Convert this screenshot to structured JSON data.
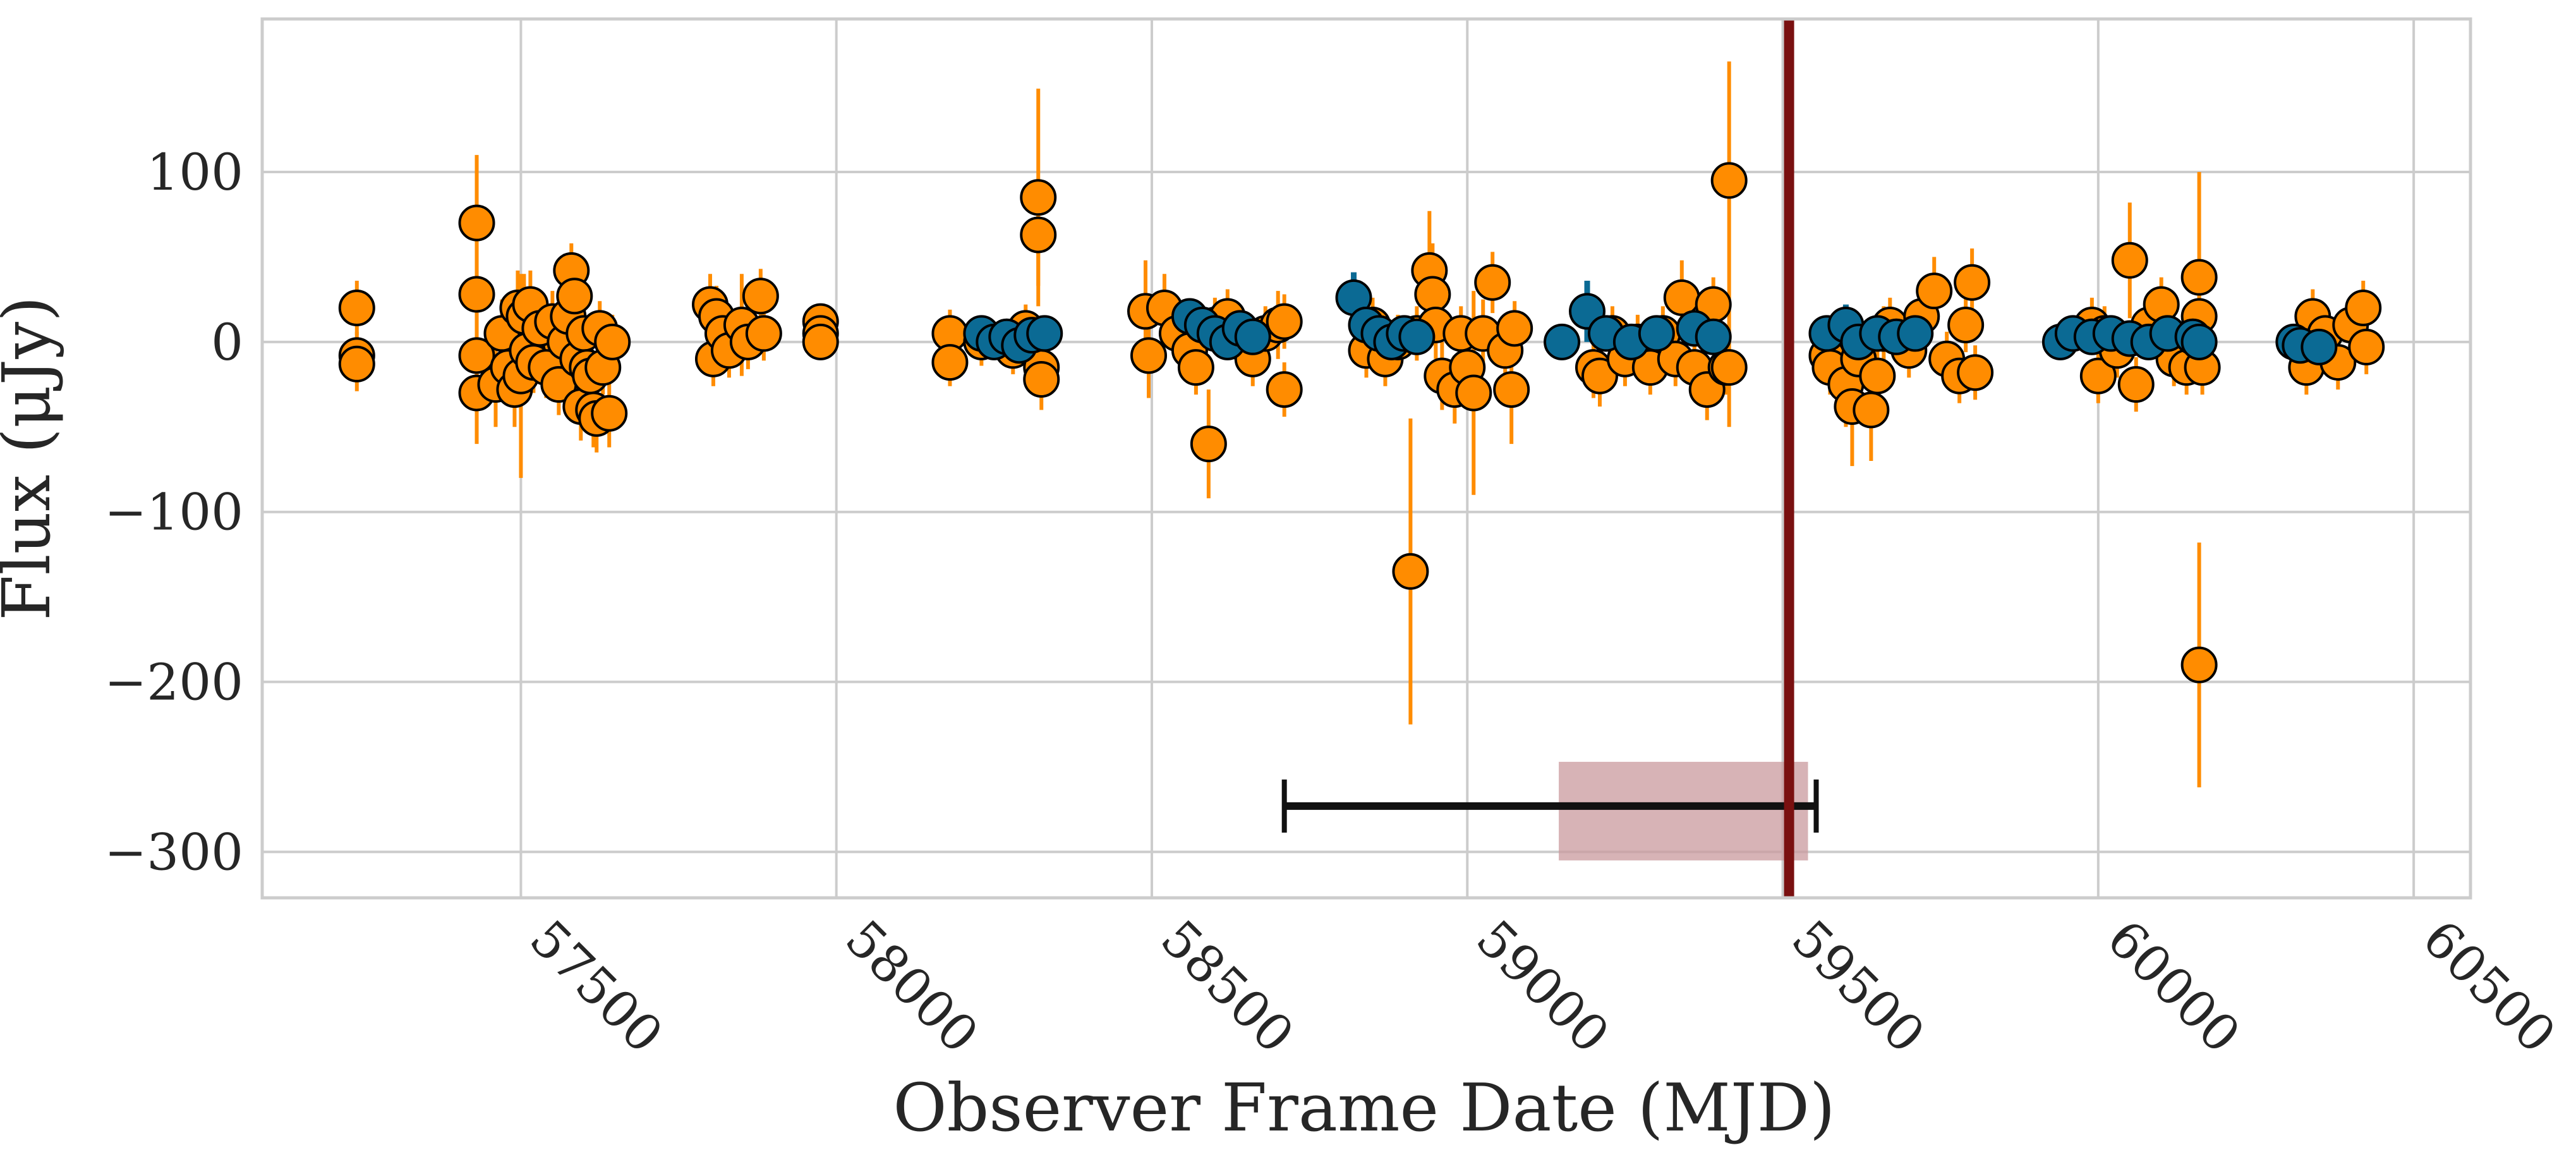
{
  "chart_data": {
    "type": "scatter",
    "title": "",
    "xlabel": "Observer Frame Date (MJD)",
    "ylabel": "Flux (μJy)",
    "xlim": [
      57090,
      60590
    ],
    "ylim": [
      -327,
      190
    ],
    "x_ticks": [
      57500,
      58000,
      58500,
      59000,
      59500,
      60000,
      60500
    ],
    "y_ticks": [
      100,
      0,
      -100,
      -200,
      -300
    ],
    "x_tick_labels": [
      "57500",
      "58000",
      "58500",
      "59000",
      "59500",
      "60000",
      "60500"
    ],
    "y_tick_labels": [
      "100",
      "0",
      "−100",
      "−200",
      "−300"
    ],
    "grid": true,
    "legend": "none",
    "colors": {
      "orange": "#ff8c00",
      "blue": "#0b6a94",
      "marker_edge": "#000000",
      "vertical_line": "#7a1010",
      "interval_bar": "#111111",
      "shaded_region": "#c99a9d",
      "grid": "#cccccc",
      "frame": "#cccccc"
    },
    "series": [
      {
        "color": "orange",
        "points": [
          {
            "x": 57240,
            "y": 20,
            "err": 16
          },
          {
            "x": 57240,
            "y": -8,
            "err": 14
          },
          {
            "x": 57240,
            "y": -13,
            "err": 16
          },
          {
            "x": 57430,
            "y": 70,
            "err": 40
          },
          {
            "x": 57430,
            "y": 28,
            "err": 30
          },
          {
            "x": 57430,
            "y": -8,
            "err": 25
          },
          {
            "x": 57430,
            "y": -30,
            "err": 30
          },
          {
            "x": 57460,
            "y": -25,
            "err": 25
          },
          {
            "x": 57470,
            "y": 5,
            "err": 20
          },
          {
            "x": 57480,
            "y": -15,
            "err": 20
          },
          {
            "x": 57490,
            "y": -28,
            "err": 22
          },
          {
            "x": 57495,
            "y": 20,
            "err": 22
          },
          {
            "x": 57500,
            "y": -20,
            "err": 60
          },
          {
            "x": 57505,
            "y": 15,
            "err": 25
          },
          {
            "x": 57510,
            "y": -5,
            "err": 20
          },
          {
            "x": 57515,
            "y": 22,
            "err": 20
          },
          {
            "x": 57520,
            "y": -12,
            "err": 18
          },
          {
            "x": 57530,
            "y": 8,
            "err": 18
          },
          {
            "x": 57540,
            "y": -15,
            "err": 18
          },
          {
            "x": 57550,
            "y": 12,
            "err": 18
          },
          {
            "x": 57560,
            "y": -25,
            "err": 18
          },
          {
            "x": 57570,
            "y": 0,
            "err": 20
          },
          {
            "x": 57575,
            "y": 15,
            "err": 18
          },
          {
            "x": 57580,
            "y": 42,
            "err": 16
          },
          {
            "x": 57585,
            "y": 27,
            "err": 16
          },
          {
            "x": 57590,
            "y": -10,
            "err": 18
          },
          {
            "x": 57595,
            "y": -38,
            "err": 20
          },
          {
            "x": 57600,
            "y": 5,
            "err": 18
          },
          {
            "x": 57605,
            "y": -15,
            "err": 18
          },
          {
            "x": 57610,
            "y": -20,
            "err": 20
          },
          {
            "x": 57615,
            "y": -40,
            "err": 22
          },
          {
            "x": 57620,
            "y": -45,
            "err": 20
          },
          {
            "x": 57625,
            "y": 8,
            "err": 16
          },
          {
            "x": 57630,
            "y": -15,
            "err": 16
          },
          {
            "x": 57640,
            "y": -42,
            "err": 20
          },
          {
            "x": 57645,
            "y": 0,
            "err": 16
          },
          {
            "x": 57800,
            "y": 22,
            "err": 18
          },
          {
            "x": 57805,
            "y": -10,
            "err": 16
          },
          {
            "x": 57810,
            "y": 15,
            "err": 18
          },
          {
            "x": 57820,
            "y": 5,
            "err": 16
          },
          {
            "x": 57830,
            "y": -5,
            "err": 16
          },
          {
            "x": 57850,
            "y": 10,
            "err": 30
          },
          {
            "x": 57860,
            "y": 0,
            "err": 16
          },
          {
            "x": 57880,
            "y": 27,
            "err": 16
          },
          {
            "x": 57885,
            "y": 5,
            "err": 16
          },
          {
            "x": 57975,
            "y": 12,
            "err": 10
          },
          {
            "x": 57975,
            "y": 5,
            "err": 10
          },
          {
            "x": 57975,
            "y": 0,
            "err": 10
          },
          {
            "x": 58180,
            "y": 5,
            "err": 14
          },
          {
            "x": 58180,
            "y": -12,
            "err": 14
          },
          {
            "x": 58230,
            "y": 0,
            "err": 14
          },
          {
            "x": 58280,
            "y": -5,
            "err": 14
          },
          {
            "x": 58300,
            "y": 8,
            "err": 14
          },
          {
            "x": 58320,
            "y": 85,
            "err": 64
          },
          {
            "x": 58320,
            "y": 63,
            "err": 30
          },
          {
            "x": 58325,
            "y": -15,
            "err": 18
          },
          {
            "x": 58325,
            "y": -22,
            "err": 18
          },
          {
            "x": 58490,
            "y": 18,
            "err": 30
          },
          {
            "x": 58495,
            "y": -8,
            "err": 25
          },
          {
            "x": 58520,
            "y": 20,
            "err": 20
          },
          {
            "x": 58540,
            "y": 5,
            "err": 16
          },
          {
            "x": 58560,
            "y": -5,
            "err": 16
          },
          {
            "x": 58570,
            "y": -15,
            "err": 16
          },
          {
            "x": 58590,
            "y": -60,
            "err": 32
          },
          {
            "x": 58600,
            "y": 10,
            "err": 16
          },
          {
            "x": 58620,
            "y": 15,
            "err": 16
          },
          {
            "x": 58640,
            "y": 0,
            "err": 16
          },
          {
            "x": 58660,
            "y": -10,
            "err": 16
          },
          {
            "x": 58680,
            "y": 5,
            "err": 16
          },
          {
            "x": 58700,
            "y": 10,
            "err": 20
          },
          {
            "x": 58710,
            "y": -28,
            "err": 16
          },
          {
            "x": 58710,
            "y": 12,
            "err": 16
          },
          {
            "x": 58840,
            "y": -5,
            "err": 16
          },
          {
            "x": 58850,
            "y": 10,
            "err": 16
          },
          {
            "x": 58870,
            "y": -10,
            "err": 16
          },
          {
            "x": 58890,
            "y": 0,
            "err": 16
          },
          {
            "x": 58910,
            "y": -135,
            "err": 90
          },
          {
            "x": 58920,
            "y": 5,
            "err": 16
          },
          {
            "x": 58940,
            "y": 42,
            "err": 35
          },
          {
            "x": 58945,
            "y": 28,
            "err": 30
          },
          {
            "x": 58950,
            "y": 10,
            "err": 20
          },
          {
            "x": 58960,
            "y": -20,
            "err": 20
          },
          {
            "x": 58980,
            "y": -28,
            "err": 20
          },
          {
            "x": 58990,
            "y": 5,
            "err": 16
          },
          {
            "x": 59000,
            "y": -15,
            "err": 20
          },
          {
            "x": 59010,
            "y": -30,
            "err": 60
          },
          {
            "x": 59025,
            "y": 5,
            "err": 20
          },
          {
            "x": 59040,
            "y": 35,
            "err": 18
          },
          {
            "x": 59060,
            "y": -5,
            "err": 16
          },
          {
            "x": 59070,
            "y": -28,
            "err": 32
          },
          {
            "x": 59075,
            "y": 8,
            "err": 16
          },
          {
            "x": 59200,
            "y": -15,
            "err": 18
          },
          {
            "x": 59210,
            "y": -20,
            "err": 18
          },
          {
            "x": 59230,
            "y": 5,
            "err": 16
          },
          {
            "x": 59250,
            "y": -10,
            "err": 16
          },
          {
            "x": 59270,
            "y": 0,
            "err": 16
          },
          {
            "x": 59290,
            "y": -15,
            "err": 16
          },
          {
            "x": 59310,
            "y": 5,
            "err": 16
          },
          {
            "x": 59330,
            "y": -10,
            "err": 16
          },
          {
            "x": 59340,
            "y": 26,
            "err": 22
          },
          {
            "x": 59360,
            "y": -15,
            "err": 16
          },
          {
            "x": 59380,
            "y": -28,
            "err": 18
          },
          {
            "x": 59390,
            "y": 22,
            "err": 16
          },
          {
            "x": 59410,
            "y": -15,
            "err": 16
          },
          {
            "x": 59415,
            "y": 95,
            "err": 70
          },
          {
            "x": 59415,
            "y": -15,
            "err": 35
          },
          {
            "x": 59570,
            "y": -8,
            "err": 16
          },
          {
            "x": 59575,
            "y": -15,
            "err": 16
          },
          {
            "x": 59600,
            "y": -25,
            "err": 25
          },
          {
            "x": 59610,
            "y": -38,
            "err": 35
          },
          {
            "x": 59620,
            "y": -10,
            "err": 20
          },
          {
            "x": 59640,
            "y": -40,
            "err": 30
          },
          {
            "x": 59650,
            "y": -20,
            "err": 20
          },
          {
            "x": 59660,
            "y": 5,
            "err": 16
          },
          {
            "x": 59670,
            "y": 10,
            "err": 16
          },
          {
            "x": 59700,
            "y": -5,
            "err": 16
          },
          {
            "x": 59720,
            "y": 15,
            "err": 16
          },
          {
            "x": 59740,
            "y": 30,
            "err": 20
          },
          {
            "x": 59760,
            "y": -10,
            "err": 16
          },
          {
            "x": 59780,
            "y": -20,
            "err": 16
          },
          {
            "x": 59790,
            "y": 10,
            "err": 16
          },
          {
            "x": 59800,
            "y": 35,
            "err": 20
          },
          {
            "x": 59805,
            "y": -18,
            "err": 16
          },
          {
            "x": 59990,
            "y": 10,
            "err": 16
          },
          {
            "x": 60000,
            "y": -20,
            "err": 16
          },
          {
            "x": 60010,
            "y": 5,
            "err": 16
          },
          {
            "x": 60030,
            "y": -5,
            "err": 16
          },
          {
            "x": 60050,
            "y": 48,
            "err": 34
          },
          {
            "x": 60060,
            "y": -25,
            "err": 16
          },
          {
            "x": 60080,
            "y": 10,
            "err": 16
          },
          {
            "x": 60100,
            "y": 22,
            "err": 16
          },
          {
            "x": 60120,
            "y": -10,
            "err": 16
          },
          {
            "x": 60140,
            "y": -15,
            "err": 16
          },
          {
            "x": 60160,
            "y": 38,
            "err": 62
          },
          {
            "x": 60160,
            "y": 15,
            "err": 20
          },
          {
            "x": 60160,
            "y": -190,
            "err": 72
          },
          {
            "x": 60165,
            "y": -15,
            "err": 16
          },
          {
            "x": 60330,
            "y": -15,
            "err": 16
          },
          {
            "x": 60340,
            "y": 15,
            "err": 16
          },
          {
            "x": 60360,
            "y": 5,
            "err": 16
          },
          {
            "x": 60380,
            "y": -12,
            "err": 16
          },
          {
            "x": 60400,
            "y": 10,
            "err": 16
          },
          {
            "x": 60420,
            "y": 20,
            "err": 16
          },
          {
            "x": 60425,
            "y": -3,
            "err": 16
          }
        ]
      },
      {
        "color": "blue",
        "points": [
          {
            "x": 58230,
            "y": 5,
            "err": 10
          },
          {
            "x": 58250,
            "y": 0,
            "err": 10
          },
          {
            "x": 58270,
            "y": 3,
            "err": 10
          },
          {
            "x": 58290,
            "y": -2,
            "err": 10
          },
          {
            "x": 58310,
            "y": 4,
            "err": 10
          },
          {
            "x": 58330,
            "y": 5,
            "err": 10
          },
          {
            "x": 58560,
            "y": 15,
            "err": 10
          },
          {
            "x": 58580,
            "y": 10,
            "err": 10
          },
          {
            "x": 58600,
            "y": 5,
            "err": 10
          },
          {
            "x": 58620,
            "y": 0,
            "err": 10
          },
          {
            "x": 58640,
            "y": 8,
            "err": 10
          },
          {
            "x": 58660,
            "y": 3,
            "err": 10
          },
          {
            "x": 58820,
            "y": 26,
            "err": 15
          },
          {
            "x": 58840,
            "y": 10,
            "err": 12
          },
          {
            "x": 58860,
            "y": 5,
            "err": 12
          },
          {
            "x": 58880,
            "y": 0,
            "err": 10
          },
          {
            "x": 58900,
            "y": 5,
            "err": 10
          },
          {
            "x": 58920,
            "y": 3,
            "err": 10
          },
          {
            "x": 59150,
            "y": 0,
            "err": 10
          },
          {
            "x": 59190,
            "y": 18,
            "err": 18
          },
          {
            "x": 59220,
            "y": 5,
            "err": 10
          },
          {
            "x": 59260,
            "y": 0,
            "err": 10
          },
          {
            "x": 59300,
            "y": 5,
            "err": 10
          },
          {
            "x": 59360,
            "y": 8,
            "err": 10
          },
          {
            "x": 59390,
            "y": 3,
            "err": 10
          },
          {
            "x": 59570,
            "y": 5,
            "err": 10
          },
          {
            "x": 59600,
            "y": 10,
            "err": 12
          },
          {
            "x": 59620,
            "y": 0,
            "err": 10
          },
          {
            "x": 59650,
            "y": 5,
            "err": 10
          },
          {
            "x": 59680,
            "y": 3,
            "err": 10
          },
          {
            "x": 59710,
            "y": 5,
            "err": 10
          },
          {
            "x": 59940,
            "y": 0,
            "err": 10
          },
          {
            "x": 59960,
            "y": 5,
            "err": 10
          },
          {
            "x": 59990,
            "y": 3,
            "err": 10
          },
          {
            "x": 60020,
            "y": 5,
            "err": 10
          },
          {
            "x": 60050,
            "y": 2,
            "err": 10
          },
          {
            "x": 60080,
            "y": 0,
            "err": 10
          },
          {
            "x": 60110,
            "y": 5,
            "err": 10
          },
          {
            "x": 60150,
            "y": 3,
            "err": 10
          },
          {
            "x": 60160,
            "y": 0,
            "err": 10
          },
          {
            "x": 60310,
            "y": 0,
            "err": 8
          },
          {
            "x": 60320,
            "y": -2,
            "err": 8
          },
          {
            "x": 60350,
            "y": -3,
            "err": 8
          }
        ]
      }
    ],
    "vertical_line": {
      "x": 59510
    },
    "interval": {
      "x_start": 58710,
      "x_end": 59553,
      "y": -273
    },
    "shaded_region": {
      "x_start": 59145,
      "x_end": 59540,
      "y_start": -305,
      "y_end": -247
    }
  }
}
